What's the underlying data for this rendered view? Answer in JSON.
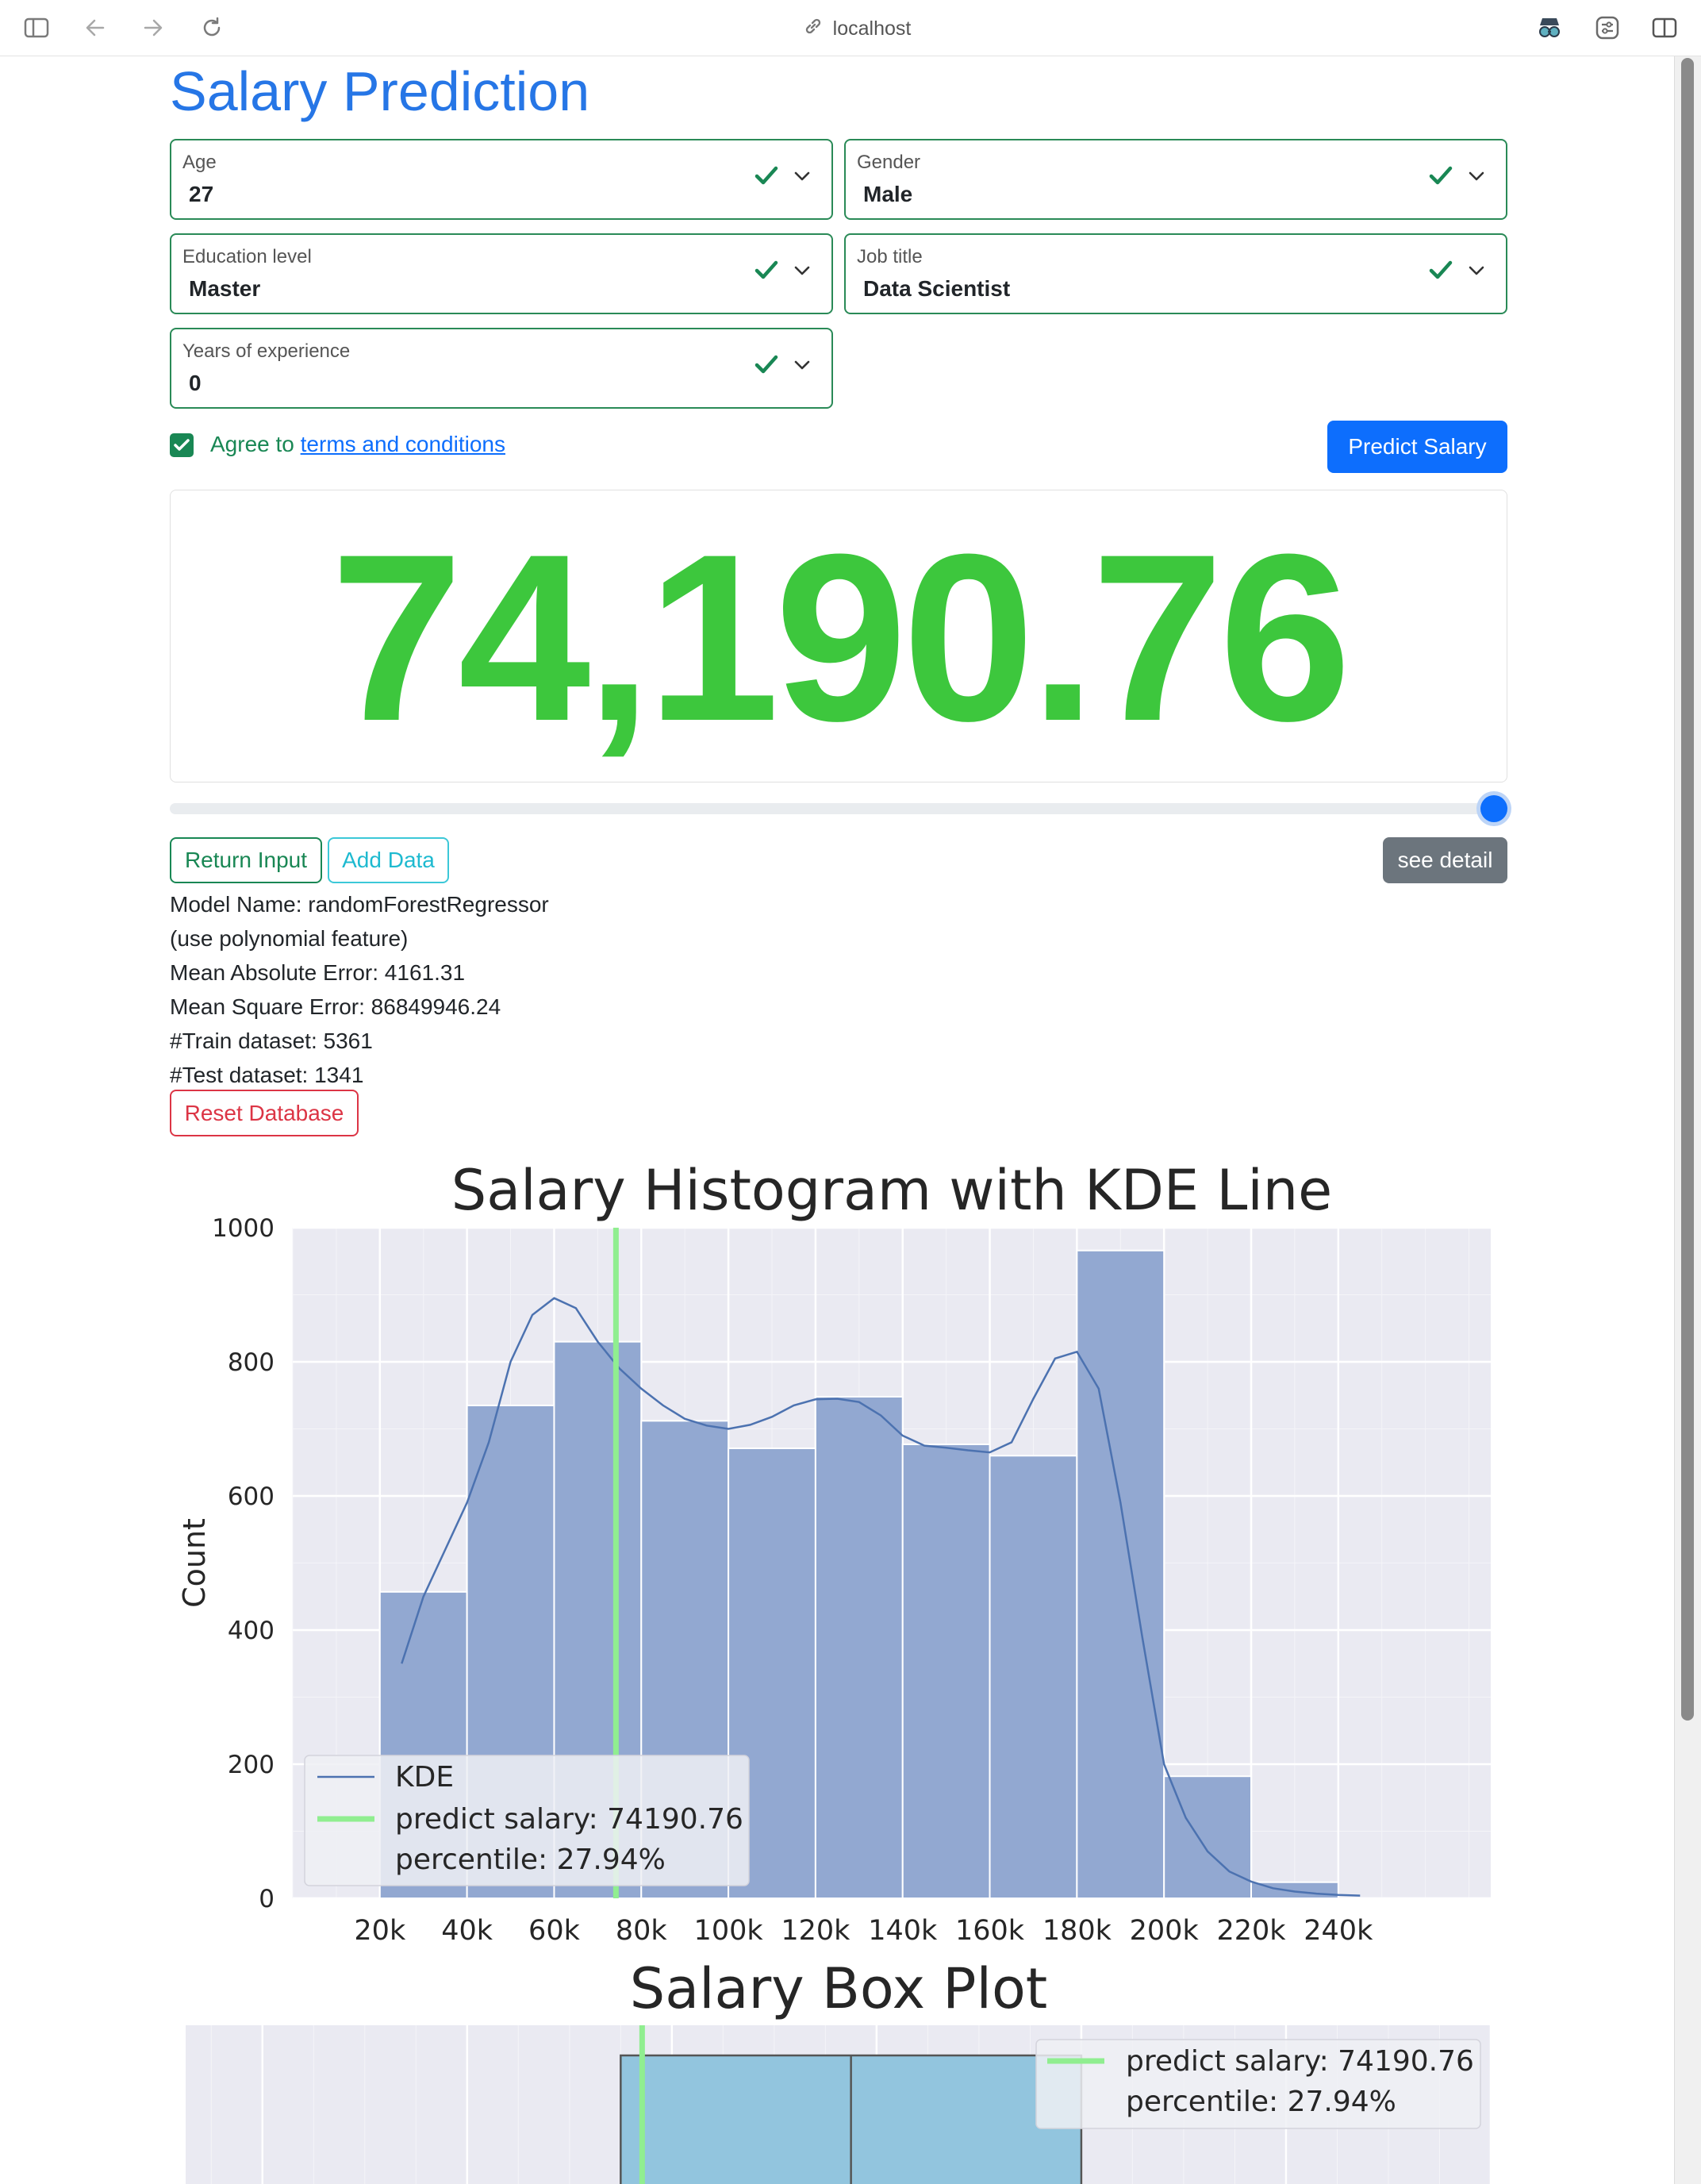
{
  "browser": {
    "address": "localhost"
  },
  "page": {
    "title": "Salary Prediction",
    "fields": [
      {
        "label": "Age",
        "value": "27"
      },
      {
        "label": "Gender",
        "value": "Male"
      },
      {
        "label": "Education level",
        "value": "Master"
      },
      {
        "label": "Job title",
        "value": "Data Scientist"
      },
      {
        "label": "Years of experience",
        "value": "0"
      }
    ],
    "agree_prefix": "Agree to",
    "agree_link": "terms and conditions",
    "agree_checked": true,
    "predict_button": "Predict Salary",
    "result_value": "74,190.76",
    "slider_fraction": 1.0,
    "return_button": "Return Input",
    "add_button": "Add Data",
    "detail_button": "see detail",
    "model_info": [
      "Model Name: randomForestRegressor",
      "(use polynomial feature)",
      "Mean Absolute Error: 4161.31",
      "Mean Square Error: 86849946.24",
      "#Train dataset: 5361",
      "#Test dataset: 1341"
    ],
    "reset_button": "Reset Database"
  },
  "colors": {
    "accent": "#0d6efd",
    "success": "#198754",
    "result": "#3dc73d",
    "bar": "#92a8d1",
    "kde": "#4c72b0",
    "predict": "#90ee90"
  },
  "chart_data": [
    {
      "type": "bar",
      "title": "Salary Histogram with KDE Line",
      "xlabel": "",
      "ylabel": "Count",
      "xlim": [
        0,
        275000
      ],
      "ylim": [
        0,
        1000
      ],
      "xticks": [
        20000,
        40000,
        60000,
        80000,
        100000,
        120000,
        140000,
        160000,
        180000,
        200000,
        220000,
        240000
      ],
      "xtick_labels": [
        "20k",
        "40k",
        "60k",
        "80k",
        "100k",
        "120k",
        "140k",
        "160k",
        "180k",
        "200k",
        "220k",
        "240k"
      ],
      "yticks": [
        0,
        200,
        400,
        600,
        800,
        1000
      ],
      "bin_edges": [
        20000,
        40000,
        60000,
        80000,
        100000,
        120000,
        140000,
        160000,
        180000,
        200000,
        220000,
        240000
      ],
      "values": [
        457,
        735,
        830,
        712,
        671,
        748,
        677,
        660,
        966,
        182,
        24
      ],
      "kde": {
        "name": "KDE",
        "x": [
          25000,
          30000,
          35000,
          40000,
          45000,
          50000,
          55000,
          60000,
          65000,
          70000,
          75000,
          80000,
          85000,
          90000,
          95000,
          100000,
          105000,
          110000,
          115000,
          120000,
          125000,
          130000,
          135000,
          140000,
          145000,
          150000,
          155000,
          160000,
          165000,
          170000,
          175000,
          180000,
          185000,
          190000,
          195000,
          200000,
          205000,
          210000,
          215000,
          220000,
          225000,
          230000,
          235000,
          240000,
          245000
        ],
        "y": [
          350,
          450,
          520,
          590,
          680,
          800,
          870,
          895,
          880,
          830,
          790,
          760,
          735,
          715,
          705,
          700,
          706,
          718,
          735,
          744,
          745,
          740,
          720,
          690,
          675,
          672,
          668,
          665,
          680,
          745,
          805,
          815,
          760,
          590,
          390,
          200,
          120,
          70,
          40,
          25,
          15,
          10,
          7,
          5,
          4
        ]
      },
      "predict_line": {
        "x": 74190.76
      },
      "legend": {
        "placement": "lower-left",
        "entries": [
          "KDE",
          "predict salary: 74190.76",
          "percentile: 27.94%"
        ]
      },
      "grid": true
    },
    {
      "type": "box",
      "title": "Salary Box Plot",
      "q1": 70000,
      "median": 115000,
      "q3": 160000,
      "xlim": [
        -15000,
        240000
      ],
      "predict_line": {
        "x": 74190.76
      },
      "legend": {
        "placement": "upper-right",
        "entries": [
          "predict salary: 74190.76",
          "percentile: 27.94%"
        ]
      },
      "grid": true
    }
  ]
}
